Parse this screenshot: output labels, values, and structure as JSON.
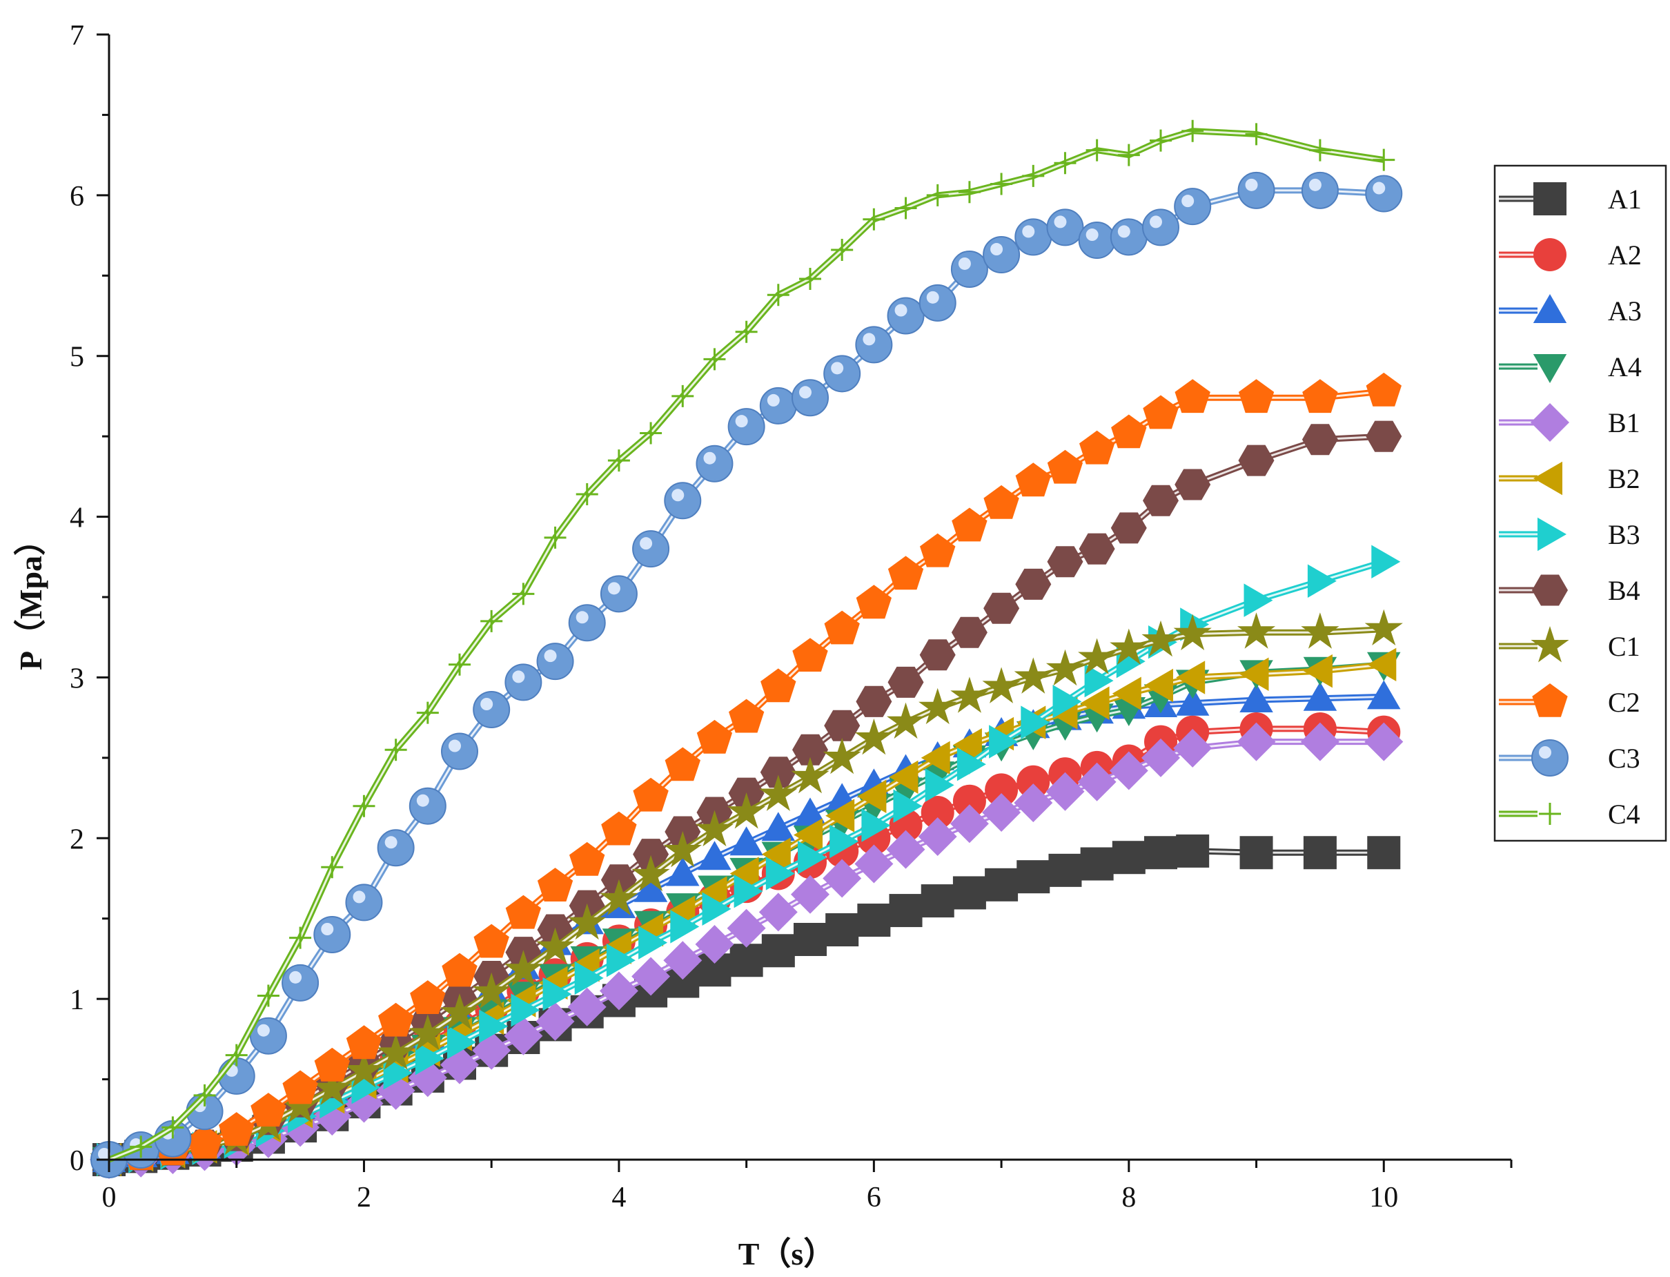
{
  "chart_data": {
    "type": "line",
    "xlabel": "T（s）",
    "ylabel": "P（Mpa）",
    "xlim": [
      0,
      11
    ],
    "ylim": [
      0,
      7
    ],
    "xticks": [
      "0",
      "2",
      "4",
      "6",
      "8",
      "10"
    ],
    "yticks": [
      "0",
      "1",
      "2",
      "3",
      "4",
      "5",
      "6",
      "7"
    ],
    "grid": false,
    "legend_position": "right",
    "series": [
      {
        "name": "A1",
        "color": "#404040",
        "marker": "square",
        "x": [
          0,
          0.25,
          0.5,
          0.75,
          1,
          1.25,
          1.5,
          1.75,
          2,
          2.25,
          2.5,
          2.75,
          3,
          3.25,
          3.5,
          3.75,
          4,
          4.25,
          4.5,
          4.75,
          5,
          5.25,
          5.5,
          5.75,
          6,
          6.25,
          6.5,
          6.75,
          7,
          7.25,
          7.5,
          7.75,
          8,
          8.25,
          8.5,
          9,
          9.5,
          10
        ],
        "y": [
          0,
          0.02,
          0.04,
          0.06,
          0.09,
          0.14,
          0.21,
          0.28,
          0.36,
          0.44,
          0.52,
          0.6,
          0.68,
          0.76,
          0.84,
          0.92,
          0.99,
          1.05,
          1.11,
          1.18,
          1.24,
          1.3,
          1.37,
          1.43,
          1.49,
          1.55,
          1.61,
          1.66,
          1.71,
          1.76,
          1.8,
          1.84,
          1.88,
          1.91,
          1.92,
          1.91,
          1.91,
          1.91
        ]
      },
      {
        "name": "A2",
        "color": "#e8403c",
        "marker": "circle",
        "x": [
          0,
          0.25,
          0.5,
          0.75,
          1,
          1.25,
          1.5,
          1.75,
          2,
          2.25,
          2.5,
          2.75,
          3,
          3.25,
          3.5,
          3.75,
          4,
          4.25,
          4.5,
          4.75,
          5,
          5.25,
          5.5,
          5.75,
          6,
          6.25,
          6.5,
          6.75,
          7,
          7.25,
          7.5,
          7.75,
          8,
          8.25,
          8.5,
          9,
          9.5,
          10
        ],
        "y": [
          0,
          0.03,
          0.05,
          0.08,
          0.12,
          0.2,
          0.3,
          0.4,
          0.5,
          0.61,
          0.72,
          0.83,
          0.94,
          1.05,
          1.15,
          1.25,
          1.36,
          1.46,
          1.54,
          1.62,
          1.7,
          1.78,
          1.85,
          1.92,
          2,
          2.08,
          2.16,
          2.23,
          2.3,
          2.35,
          2.4,
          2.44,
          2.48,
          2.6,
          2.66,
          2.68,
          2.68,
          2.66
        ]
      },
      {
        "name": "A3",
        "color": "#2f6fdc",
        "marker": "triangle-up",
        "x": [
          0,
          0.25,
          0.5,
          0.75,
          1,
          1.25,
          1.5,
          1.75,
          2,
          2.25,
          2.5,
          2.75,
          3,
          3.25,
          3.5,
          3.75,
          4,
          4.25,
          4.5,
          4.75,
          5,
          5.25,
          5.5,
          5.75,
          6,
          6.25,
          6.5,
          6.75,
          7,
          7.25,
          7.5,
          7.75,
          8,
          8.25,
          8.5,
          9,
          9.5,
          10
        ],
        "y": [
          0,
          0.03,
          0.05,
          0.08,
          0.13,
          0.22,
          0.33,
          0.44,
          0.55,
          0.66,
          0.77,
          0.9,
          1.05,
          1.2,
          1.35,
          1.48,
          1.58,
          1.68,
          1.78,
          1.88,
          1.97,
          2.06,
          2.15,
          2.24,
          2.33,
          2.42,
          2.5,
          2.58,
          2.65,
          2.7,
          2.75,
          2.79,
          2.82,
          2.83,
          2.84,
          2.86,
          2.87,
          2.88
        ]
      },
      {
        "name": "A4",
        "color": "#2a9a6a",
        "marker": "triangle-down",
        "x": [
          0,
          0.25,
          0.5,
          0.75,
          1,
          1.25,
          1.5,
          1.75,
          2,
          2.25,
          2.5,
          2.75,
          3,
          3.25,
          3.5,
          3.75,
          4,
          4.25,
          4.5,
          4.75,
          5,
          5.25,
          5.5,
          5.75,
          6,
          6.25,
          6.5,
          6.75,
          7,
          7.25,
          7.5,
          7.75,
          8,
          8.25,
          8.5,
          9,
          9.5,
          10
        ],
        "y": [
          0,
          0.03,
          0.05,
          0.08,
          0.12,
          0.2,
          0.3,
          0.4,
          0.5,
          0.6,
          0.7,
          0.81,
          0.92,
          1.03,
          1.14,
          1.25,
          1.36,
          1.47,
          1.58,
          1.69,
          1.8,
          1.9,
          2,
          2.1,
          2.2,
          2.3,
          2.4,
          2.5,
          2.58,
          2.65,
          2.71,
          2.76,
          2.8,
          2.88,
          2.97,
          3.03,
          3.05,
          3.08
        ]
      },
      {
        "name": "B1",
        "color": "#b07ee0",
        "marker": "diamond",
        "x": [
          0,
          0.25,
          0.5,
          0.75,
          1,
          1.25,
          1.5,
          1.75,
          2,
          2.25,
          2.5,
          2.75,
          3,
          3.25,
          3.5,
          3.75,
          4,
          4.25,
          4.5,
          4.75,
          5,
          5.25,
          5.5,
          5.75,
          6,
          6.25,
          6.5,
          6.75,
          7,
          7.25,
          7.5,
          7.75,
          8,
          8.25,
          8.5,
          9,
          9.5,
          10
        ],
        "y": [
          0,
          0.01,
          0.03,
          0.05,
          0.08,
          0.13,
          0.2,
          0.27,
          0.35,
          0.43,
          0.51,
          0.59,
          0.68,
          0.77,
          0.86,
          0.95,
          1.05,
          1.14,
          1.24,
          1.34,
          1.44,
          1.54,
          1.65,
          1.75,
          1.84,
          1.93,
          2.01,
          2.09,
          2.16,
          2.22,
          2.29,
          2.35,
          2.42,
          2.5,
          2.56,
          2.6,
          2.6,
          2.6
        ]
      },
      {
        "name": "B2",
        "color": "#c8a000",
        "marker": "triangle-left",
        "x": [
          0,
          0.25,
          0.5,
          0.75,
          1,
          1.25,
          1.5,
          1.75,
          2,
          2.25,
          2.5,
          2.75,
          3,
          3.25,
          3.5,
          3.75,
          4,
          4.25,
          4.5,
          4.75,
          5,
          5.25,
          5.5,
          5.75,
          6,
          6.25,
          6.5,
          6.75,
          7,
          7.25,
          7.5,
          7.75,
          8,
          8.25,
          8.5,
          9,
          9.5,
          10
        ],
        "y": [
          0,
          0.03,
          0.05,
          0.08,
          0.13,
          0.21,
          0.3,
          0.39,
          0.48,
          0.58,
          0.68,
          0.78,
          0.88,
          0.99,
          1.1,
          1.21,
          1.32,
          1.43,
          1.54,
          1.66,
          1.78,
          1.9,
          2.02,
          2.14,
          2.26,
          2.38,
          2.5,
          2.58,
          2.65,
          2.72,
          2.78,
          2.84,
          2.9,
          2.95,
          3,
          3.02,
          3.04,
          3.08
        ]
      },
      {
        "name": "B3",
        "color": "#1fcfcf",
        "marker": "triangle-right",
        "x": [
          0,
          0.25,
          0.5,
          0.75,
          1,
          1.25,
          1.5,
          1.75,
          2,
          2.25,
          2.5,
          2.75,
          3,
          3.25,
          3.5,
          3.75,
          4,
          4.25,
          4.5,
          4.75,
          5,
          5.25,
          5.5,
          5.75,
          6,
          6.25,
          6.5,
          6.75,
          7,
          7.25,
          7.5,
          7.75,
          8,
          8.25,
          8.5,
          9,
          9.5,
          10
        ],
        "y": [
          0,
          0.02,
          0.04,
          0.07,
          0.11,
          0.18,
          0.27,
          0.36,
          0.45,
          0.54,
          0.63,
          0.73,
          0.83,
          0.93,
          1.03,
          1.13,
          1.24,
          1.35,
          1.45,
          1.56,
          1.67,
          1.78,
          1.88,
          1.98,
          2.08,
          2.2,
          2.33,
          2.46,
          2.6,
          2.72,
          2.85,
          2.98,
          3.1,
          3.22,
          3.33,
          3.48,
          3.6,
          3.72
        ]
      },
      {
        "name": "B4",
        "color": "#7b4a48",
        "marker": "hexagon",
        "x": [
          0,
          0.25,
          0.5,
          0.75,
          1,
          1.25,
          1.5,
          1.75,
          2,
          2.25,
          2.5,
          2.75,
          3,
          3.25,
          3.5,
          3.75,
          4,
          4.25,
          4.5,
          4.75,
          5,
          5.25,
          5.5,
          5.75,
          6,
          6.25,
          6.5,
          6.75,
          7,
          7.25,
          7.5,
          7.75,
          8,
          8.25,
          8.5,
          9,
          9.5,
          10
        ],
        "y": [
          0,
          0.03,
          0.06,
          0.09,
          0.15,
          0.25,
          0.36,
          0.48,
          0.6,
          0.73,
          0.86,
          1,
          1.14,
          1.29,
          1.43,
          1.58,
          1.74,
          1.9,
          2.04,
          2.16,
          2.28,
          2.41,
          2.55,
          2.7,
          2.85,
          2.97,
          3.14,
          3.28,
          3.43,
          3.58,
          3.72,
          3.8,
          3.93,
          4.1,
          4.2,
          4.35,
          4.48,
          4.5
        ]
      },
      {
        "name": "C1",
        "color": "#8a8a18",
        "marker": "star",
        "x": [
          0,
          0.25,
          0.5,
          0.75,
          1,
          1.25,
          1.5,
          1.75,
          2,
          2.25,
          2.5,
          2.75,
          3,
          3.25,
          3.5,
          3.75,
          4,
          4.25,
          4.5,
          4.75,
          5,
          5.25,
          5.5,
          5.75,
          6,
          6.25,
          6.5,
          6.75,
          7,
          7.25,
          7.5,
          7.75,
          8,
          8.25,
          8.5,
          9,
          9.5,
          10
        ],
        "y": [
          0,
          0.03,
          0.05,
          0.08,
          0.13,
          0.22,
          0.33,
          0.44,
          0.55,
          0.66,
          0.78,
          0.91,
          1.04,
          1.18,
          1.32,
          1.47,
          1.62,
          1.77,
          1.92,
          2.05,
          2.16,
          2.27,
          2.38,
          2.5,
          2.62,
          2.72,
          2.81,
          2.88,
          2.94,
          3.0,
          3.05,
          3.12,
          3.18,
          3.23,
          3.27,
          3.28,
          3.28,
          3.3
        ]
      },
      {
        "name": "C2",
        "color": "#ff6a0a",
        "marker": "pentagon",
        "x": [
          0,
          0.25,
          0.5,
          0.75,
          1,
          1.25,
          1.5,
          1.75,
          2,
          2.25,
          2.5,
          2.75,
          3,
          3.25,
          3.5,
          3.75,
          4,
          4.25,
          4.5,
          4.75,
          5,
          5.25,
          5.5,
          5.75,
          6,
          6.25,
          6.5,
          6.75,
          7,
          7.25,
          7.5,
          7.75,
          8,
          8.25,
          8.5,
          9,
          9.5,
          10
        ],
        "y": [
          0,
          0.03,
          0.06,
          0.1,
          0.18,
          0.3,
          0.44,
          0.58,
          0.72,
          0.86,
          1,
          1.17,
          1.35,
          1.53,
          1.7,
          1.86,
          2.05,
          2.26,
          2.45,
          2.62,
          2.75,
          2.94,
          3.13,
          3.3,
          3.46,
          3.64,
          3.78,
          3.94,
          4.08,
          4.22,
          4.3,
          4.42,
          4.52,
          4.64,
          4.74,
          4.74,
          4.74,
          4.78
        ]
      },
      {
        "name": "C3",
        "color": "#6b9bd6",
        "marker": "sphere",
        "x": [
          0,
          0.25,
          0.5,
          0.75,
          1,
          1.25,
          1.5,
          1.75,
          2,
          2.25,
          2.5,
          2.75,
          3,
          3.25,
          3.5,
          3.75,
          4,
          4.25,
          4.5,
          4.75,
          5,
          5.25,
          5.5,
          5.75,
          6,
          6.25,
          6.5,
          6.75,
          7,
          7.25,
          7.5,
          7.75,
          8,
          8.25,
          8.5,
          9,
          9.5,
          10
        ],
        "y": [
          0,
          0.06,
          0.13,
          0.3,
          0.52,
          0.77,
          1.1,
          1.4,
          1.6,
          1.94,
          2.2,
          2.54,
          2.8,
          2.97,
          3.1,
          3.34,
          3.52,
          3.8,
          4.1,
          4.33,
          4.56,
          4.69,
          4.74,
          4.89,
          5.07,
          5.25,
          5.33,
          5.54,
          5.63,
          5.74,
          5.8,
          5.72,
          5.74,
          5.8,
          5.93,
          6.03,
          6.03,
          6.01
        ]
      },
      {
        "name": "C4",
        "color": "#6ab51e",
        "marker": "plus",
        "x": [
          0,
          0.25,
          0.5,
          0.75,
          1,
          1.25,
          1.5,
          1.75,
          2,
          2.25,
          2.5,
          2.75,
          3,
          3.25,
          3.5,
          3.75,
          4,
          4.25,
          4.5,
          4.75,
          5,
          5.25,
          5.5,
          5.75,
          6,
          6.25,
          6.5,
          6.75,
          7,
          7.25,
          7.5,
          7.75,
          8,
          8.25,
          8.5,
          9,
          9.5,
          10
        ],
        "y": [
          0,
          0.08,
          0.2,
          0.4,
          0.65,
          1.02,
          1.38,
          1.82,
          2.2,
          2.55,
          2.78,
          3.08,
          3.35,
          3.52,
          3.87,
          4.14,
          4.35,
          4.52,
          4.75,
          4.98,
          5.15,
          5.38,
          5.48,
          5.66,
          5.85,
          5.92,
          6.0,
          6.02,
          6.07,
          6.12,
          6.2,
          6.28,
          6.25,
          6.34,
          6.4,
          6.38,
          6.28,
          6.22
        ]
      }
    ]
  }
}
